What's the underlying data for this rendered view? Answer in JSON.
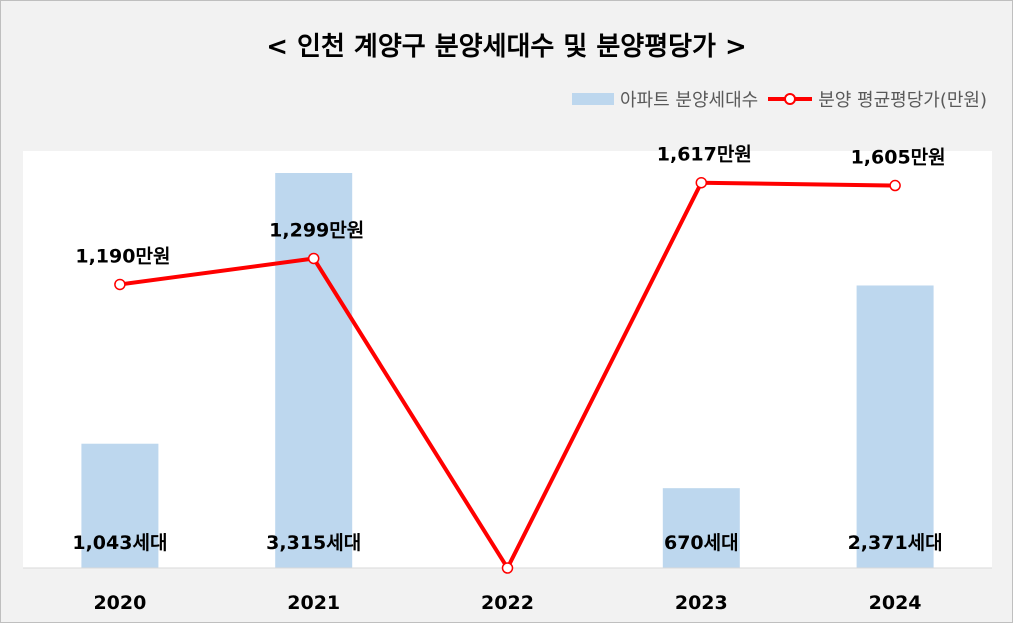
{
  "chart_data": {
    "type": "bar",
    "title": "< 인천 계양구 분양세대수 및 분양평당가 >",
    "categories": [
      "2020",
      "2021",
      "2022",
      "2023",
      "2024"
    ],
    "series": [
      {
        "name": "아파트 분양세대수",
        "type": "bar",
        "values": [
          1043,
          3315,
          0,
          670,
          2371
        ],
        "labels": [
          "1,043세대",
          "3,315세대",
          "",
          "670세대",
          "2,371세대"
        ],
        "color": "#bdd7ee"
      },
      {
        "name": "분양 평균평당가(만원)",
        "type": "line",
        "values": [
          1190,
          1299,
          0,
          1617,
          1605
        ],
        "labels": [
          "1,190만원",
          "1,299만원",
          "",
          "1,617만원",
          "1,605만원"
        ],
        "color": "#ff0000"
      }
    ],
    "bar_axis_range": [
      0,
      3315
    ],
    "line_axis_range": [
      0,
      1750
    ],
    "grid": false,
    "legend_position": "top-right"
  }
}
